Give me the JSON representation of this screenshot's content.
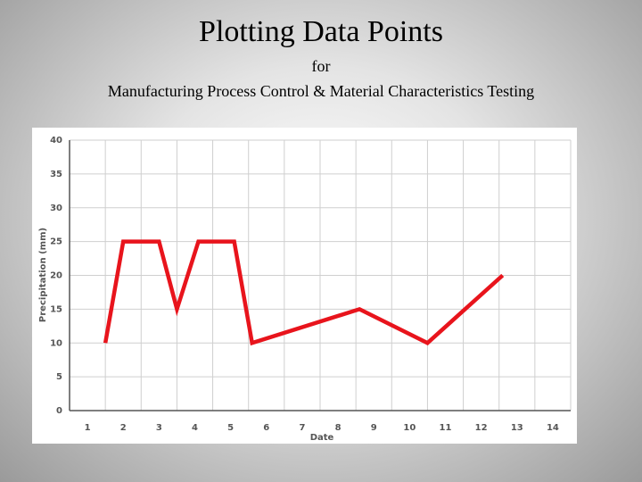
{
  "chart_data": {
    "type": "line",
    "title": "Plotting Data Points",
    "subtitle": [
      "for",
      "Manufacturing Process Control & Material Characteristics Testing"
    ],
    "x_label": "Date",
    "y_label": "Precipitation (mm)",
    "x": [
      1.5,
      2,
      3,
      3.5,
      4.1,
      5.1,
      5.6,
      8.6,
      10.5,
      12.6
    ],
    "series": [
      {
        "color": "#e8141c",
        "values": [
          10,
          25,
          25,
          15,
          25,
          25,
          10,
          15,
          10,
          20
        ]
      }
    ],
    "xlim": [
      0.5,
      14.5
    ],
    "xticks": [
      1,
      2,
      3,
      4,
      5,
      6,
      7,
      8,
      9,
      10,
      11,
      12,
      13,
      14
    ],
    "ylim": [
      0,
      40
    ],
    "yticks": [
      0,
      5,
      10,
      15,
      20,
      25,
      30,
      35,
      40
    ],
    "grid": true
  }
}
